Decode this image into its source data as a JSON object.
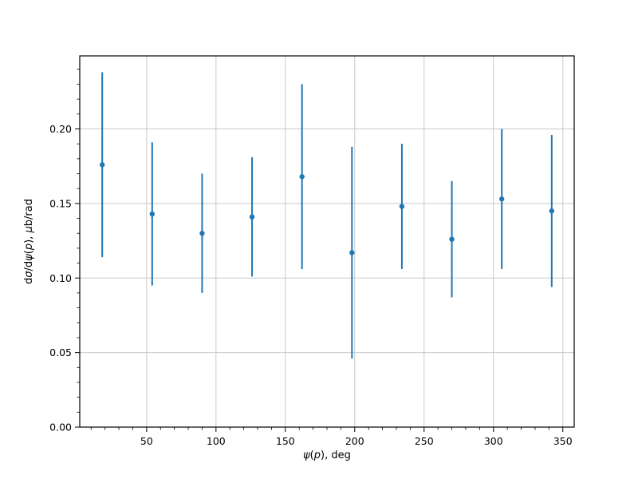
{
  "figure": {
    "background": "#ffffff",
    "plot_background": "#ffffff"
  },
  "chart_data": {
    "type": "scatter",
    "subtype": "errorbar",
    "title": "",
    "xlabel": "ψ(p), deg",
    "ylabel": "dσ/dψ(p), μb/rad",
    "x": [
      18,
      54,
      90,
      126,
      162,
      198,
      234,
      270,
      306,
      342
    ],
    "y": [
      0.176,
      0.143,
      0.13,
      0.141,
      0.168,
      0.117,
      0.148,
      0.126,
      0.153,
      0.145
    ],
    "yerr": [
      0.062,
      0.048,
      0.04,
      0.04,
      0.062,
      0.071,
      0.042,
      0.039,
      0.047,
      0.051
    ],
    "xlim": [
      1.8,
      358.2
    ],
    "ylim": [
      0.0,
      0.249
    ],
    "xticks": [
      50,
      100,
      150,
      200,
      250,
      300,
      350
    ],
    "yticks": [
      0.0,
      0.05,
      0.1,
      0.15,
      0.2
    ],
    "ytick_format_decimals": 2,
    "x_minor_step": 10,
    "y_minor_step": 0.01,
    "grid": true,
    "legend_position": "none",
    "marker": "point",
    "series_color": "#1f77b4",
    "grid_color": "#c9c9c9",
    "spine_color": "#000000",
    "tick_color": "#000000",
    "italic_chars": "σψpμ"
  }
}
